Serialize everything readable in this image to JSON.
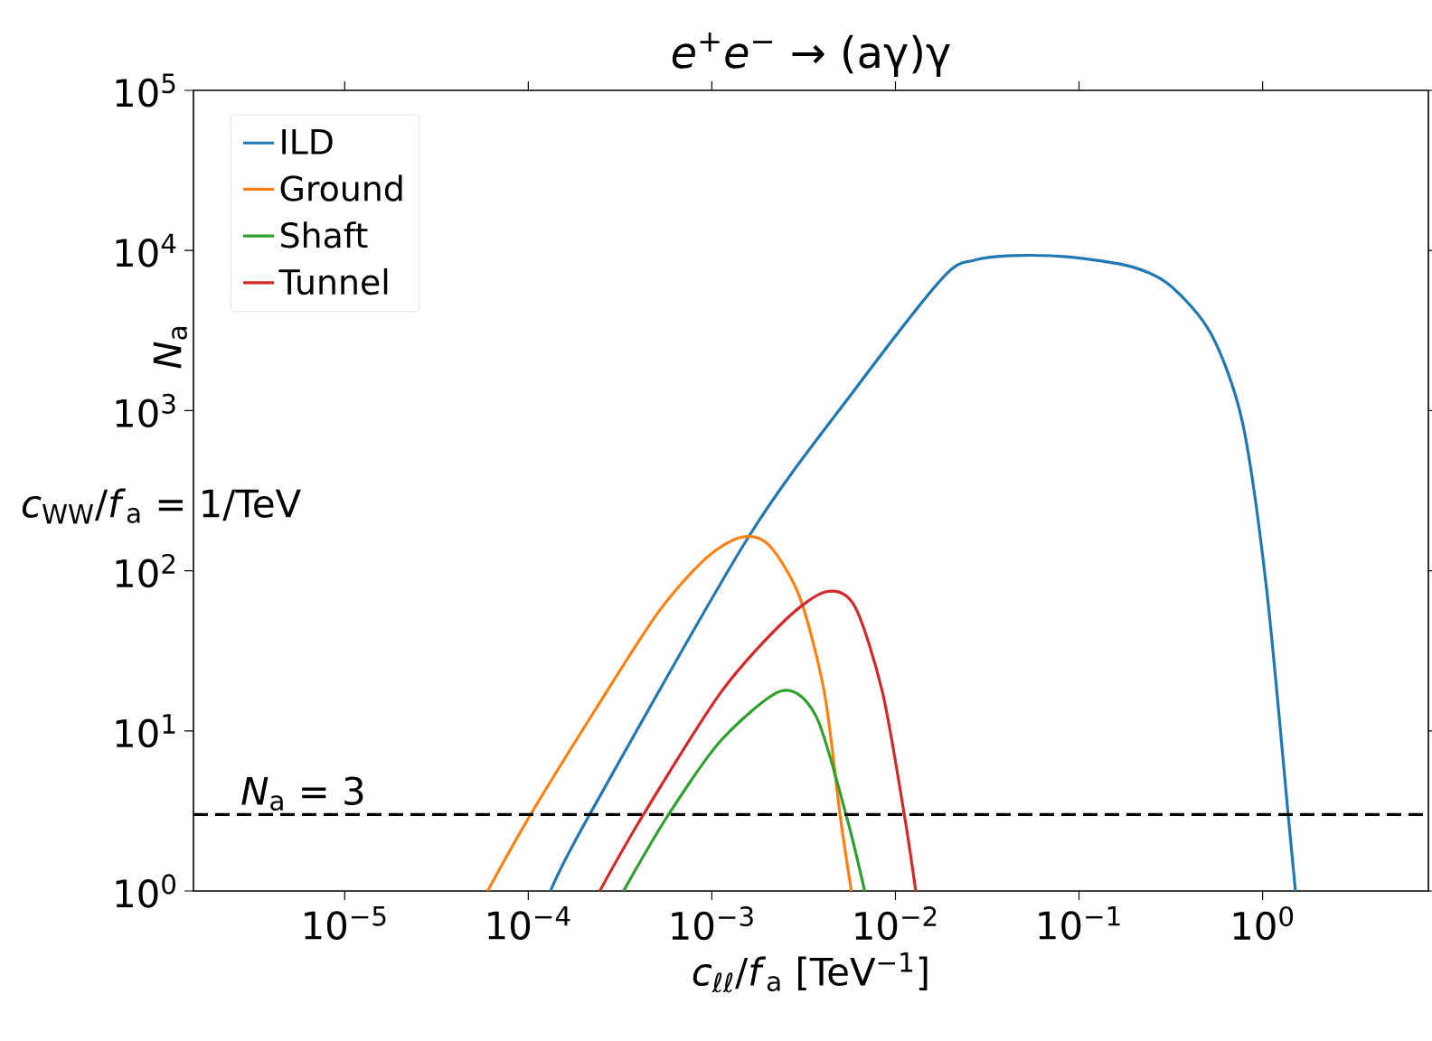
{
  "chart_data": {
    "type": "line",
    "title": "*e*$^{+}$*e*$^{−}$ → (aγ)γ",
    "xlabel": "*c*$_{ℓℓ}$/*f*$_{a}$ [TeV$^{−1}$]",
    "ylabel": "*N*$_{a}$",
    "log": "xy",
    "xlim": [
      1.5e-06,
      8
    ],
    "ylim": [
      1,
      100000
    ],
    "xticks": [
      {
        "value": 1e-05,
        "label": "10$^{−5}$"
      },
      {
        "value": 0.0001,
        "label": "10$^{−4}$"
      },
      {
        "value": 0.001,
        "label": "10$^{−3}$"
      },
      {
        "value": 0.01,
        "label": "10$^{−2}$"
      },
      {
        "value": 0.1,
        "label": "10$^{−1}$"
      },
      {
        "value": 1,
        "label": "10$^{0}$"
      }
    ],
    "yticks": [
      {
        "value": 1,
        "label": "10$^{0}$"
      },
      {
        "value": 10,
        "label": "10$^{1}$"
      },
      {
        "value": 100,
        "label": "10$^{2}$"
      },
      {
        "value": 1000,
        "label": "10$^{3}$"
      },
      {
        "value": 10000,
        "label": "10$^{4}$"
      },
      {
        "value": 100000,
        "label": "10$^{5}$"
      }
    ],
    "series": [
      {
        "name": "ILD",
        "color": "#1f77b4",
        "x": [
          0.000132,
          0.000214,
          0.00158,
          0.006,
          0.0182,
          0.0269,
          0.0437,
          0.089,
          0.195,
          0.316,
          0.525,
          0.776,
          1.05,
          1.38,
          1.51
        ],
        "values": [
          1,
          2.95,
          162,
          1350,
          6800,
          8700,
          9300,
          9100,
          7900,
          6000,
          3000,
          850,
          78,
          2.95,
          1
        ]
      },
      {
        "name": "Ground",
        "color": "#ff7f0e",
        "x": [
          6e-05,
          0.000102,
          0.000234,
          0.00051,
          0.00093,
          0.00145,
          0.00204,
          0.003,
          0.0041,
          0.005,
          0.00575
        ],
        "values": [
          1,
          2.95,
          13.8,
          55,
          120,
          162,
          145,
          69,
          17.4,
          2.95,
          1
        ]
      },
      {
        "name": "Shaft",
        "color": "#2ca02c",
        "x": [
          0.00033,
          0.000575,
          0.00112,
          0.0024,
          0.0037,
          0.0054,
          0.0068
        ],
        "values": [
          1,
          2.95,
          8.7,
          17.8,
          12.3,
          2.95,
          1
        ]
      },
      {
        "name": "Tunnel",
        "color": "#d62728",
        "x": [
          0.000245,
          0.00042,
          0.00112,
          0.0025,
          0.0042,
          0.006,
          0.0085,
          0.0112,
          0.0129
        ],
        "values": [
          1,
          2.95,
          17.4,
          49,
          74,
          60,
          17.4,
          2.95,
          1
        ]
      }
    ],
    "ref_lines": [
      {
        "axis": "y",
        "value": 3,
        "label": "*N*$_{a}$ = 3",
        "color": "#000000",
        "line_style": "dashed"
      }
    ],
    "annotations": [
      "*c*$_{WW}$/*f*$_{a}$ = 1/TeV"
    ],
    "legend": "top left",
    "grid": false,
    "marker": "none",
    "line_style": "solid"
  }
}
